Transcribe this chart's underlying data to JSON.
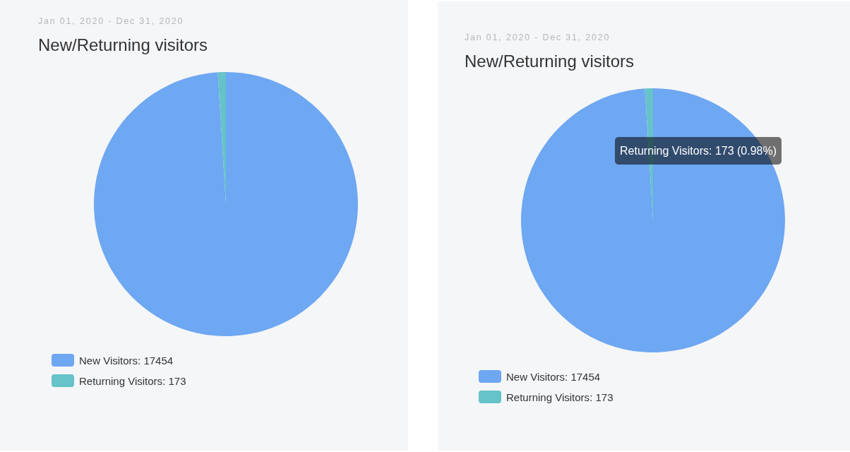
{
  "chart_data": [
    {
      "type": "pie",
      "subtitle": "Jan 01, 2020 - Dec 31, 2020",
      "title": "New/Returning visitors",
      "categories": [
        "New Visitors",
        "Returning Visitors"
      ],
      "values": [
        17454,
        173
      ],
      "value_labels": [
        ": 17454",
        ": 173"
      ],
      "colors": [
        "#6ea7f2",
        "#65c3c9"
      ],
      "legend": "bottom left"
    },
    {
      "type": "pie",
      "subtitle": "Jan 01, 2020 - Dec 31, 2020",
      "title": "New/Returning visitors",
      "categories": [
        "New Visitors",
        "Returning Visitors"
      ],
      "values": [
        17454,
        173
      ],
      "value_labels": [
        ": 17454",
        ": 173"
      ],
      "colors": [
        "#6ea7f2",
        "#65c3c9"
      ],
      "legend": "bottom left",
      "annotations": [
        "Returning Visitors: 173 (0.98%)"
      ]
    }
  ]
}
